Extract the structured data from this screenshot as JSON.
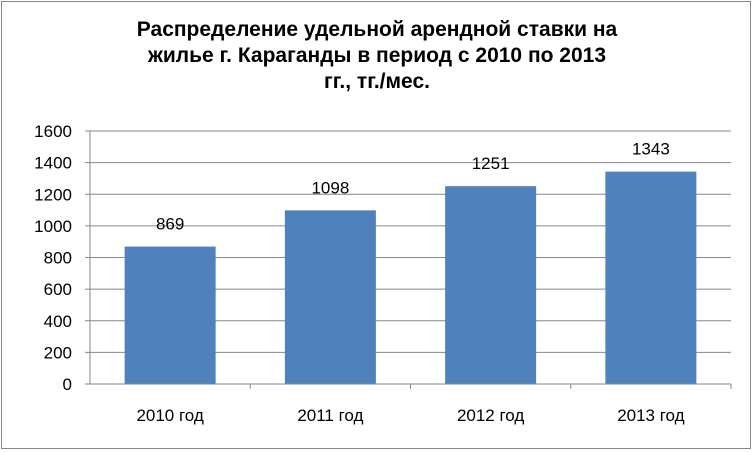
{
  "chart_data": {
    "type": "bar",
    "title_lines": [
      "Распределение удельной арендной ставки на",
      "жилье г. Караганды в период с 2010 по 2013",
      "гг., тг./мес."
    ],
    "categories": [
      "2010 год",
      "2011 год",
      "2012 год",
      "2013 год"
    ],
    "values": [
      869,
      1098,
      1251,
      1343
    ],
    "data_labels": [
      "869",
      "1098",
      "1251",
      "1343"
    ],
    "xlabel": "",
    "ylabel": "",
    "ylim": [
      0,
      1600
    ],
    "yticks": [
      0,
      200,
      400,
      600,
      800,
      1000,
      1200,
      1400,
      1600
    ],
    "grid": true,
    "legend": "none",
    "bar_color": "#4F81BD"
  }
}
